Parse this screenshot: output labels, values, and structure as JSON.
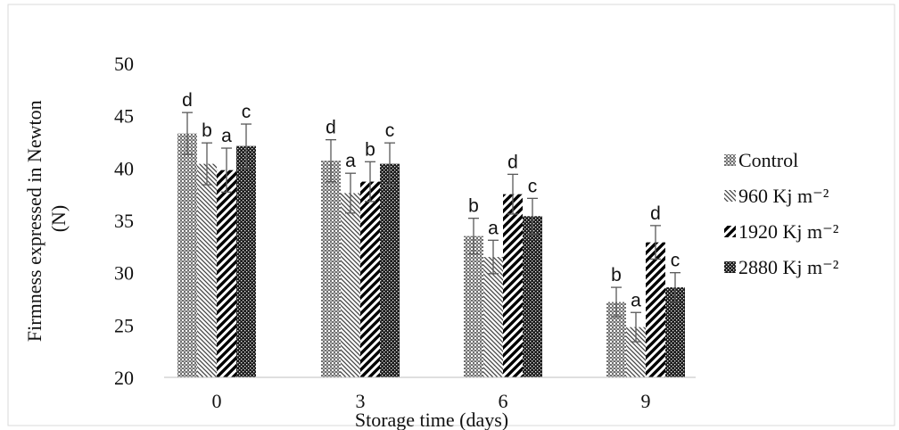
{
  "chart_data": {
    "type": "bar",
    "title": "",
    "xlabel": "Storage time (days)",
    "ylabel": "Firmness expressed in Newton (N)",
    "ylim": [
      20,
      50
    ],
    "yticks": [
      "50",
      "45",
      "40",
      "35",
      "30",
      "25",
      "20"
    ],
    "categories": [
      "0",
      "3",
      "6",
      "9"
    ],
    "grid": false,
    "legend_position": "right",
    "series": [
      {
        "name": "Control",
        "pattern": "dots-dense",
        "values": [
          43.3,
          40.7,
          33.5,
          27.2
        ],
        "errors": [
          2.0,
          2.0,
          1.7,
          1.4
        ],
        "letters": [
          "d",
          "d",
          "b",
          "b"
        ]
      },
      {
        "name": "960 Kj m⁻²",
        "pattern": "backslash-stripes",
        "values": [
          40.4,
          37.6,
          31.5,
          24.8
        ],
        "errors": [
          2.0,
          1.9,
          1.6,
          1.4
        ],
        "letters": [
          "b",
          "a",
          "a",
          "a"
        ]
      },
      {
        "name": "1920  Kj m⁻²",
        "pattern": "forward-slash-stripes",
        "values": [
          39.8,
          38.7,
          37.5,
          32.9
        ],
        "errors": [
          2.1,
          1.9,
          1.9,
          1.6
        ],
        "letters": [
          "a",
          "b",
          "d",
          "d"
        ]
      },
      {
        "name": "2880  Kj m⁻²",
        "pattern": "checker-dark",
        "values": [
          42.1,
          40.4,
          35.4,
          28.6
        ],
        "errors": [
          2.1,
          2.0,
          1.7,
          1.4
        ],
        "letters": [
          "c",
          "c",
          "c",
          "c"
        ]
      }
    ]
  }
}
